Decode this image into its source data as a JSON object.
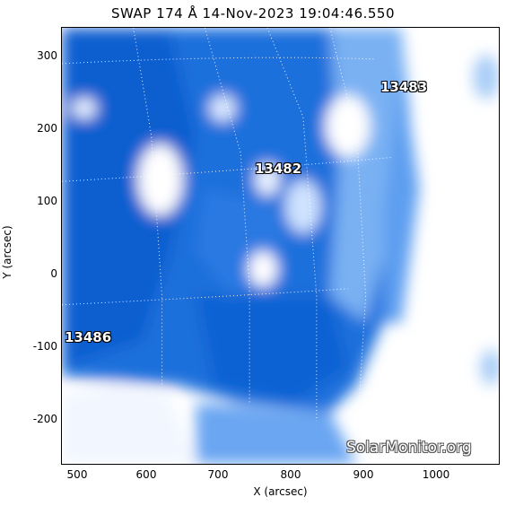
{
  "title": "SWAP 174 Å 14-Nov-2023 19:04:46.550",
  "x_axis": {
    "label": "X (arcsec)",
    "ticks": [
      "500",
      "600",
      "700",
      "800",
      "900",
      "1000"
    ]
  },
  "y_axis": {
    "label": "Y (arcsec)",
    "ticks": [
      "300",
      "200",
      "100",
      "0",
      "-100",
      "-200"
    ]
  },
  "active_regions": [
    "13483",
    "13482",
    "13486"
  ],
  "credit": "SolarMonitor.org",
  "colors": {
    "dark_blue": "#0a5fd0",
    "mid_blue": "#3d8cf0",
    "light": "#ffffff"
  }
}
